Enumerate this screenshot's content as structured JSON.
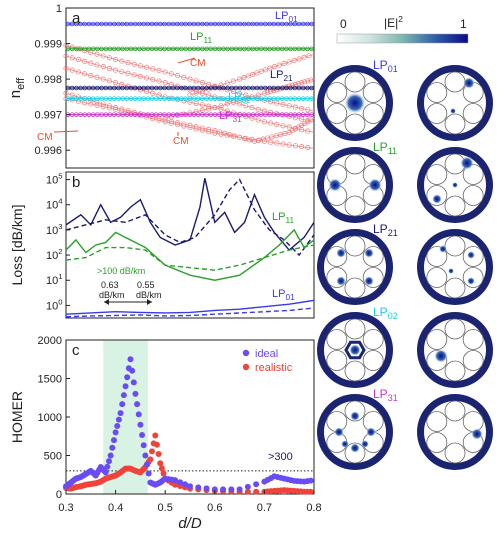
{
  "panels": {
    "a": {
      "letter": "a",
      "ylabel": "n",
      "ylabel_sub": "eff",
      "ylim": [
        0.9955,
        1.0
      ],
      "yticks": [
        "1",
        "0.999",
        "0.998",
        "0.997",
        "0.996"
      ],
      "ytick_values": [
        1.0,
        0.999,
        0.998,
        0.997,
        0.996
      ],
      "flat_modes": [
        {
          "name": "LP01",
          "label": "LP",
          "sub": "01",
          "value": 0.99955,
          "color": "#3a3ae6"
        },
        {
          "name": "LP11",
          "label": "LP",
          "sub": "11",
          "value": 0.99885,
          "color": "#2ca02c"
        },
        {
          "name": "LP21",
          "label": "LP",
          "sub": "21",
          "value": 0.99775,
          "color": "#1a1a70"
        },
        {
          "name": "LP02",
          "label": "LP",
          "sub": "02",
          "value": 0.99745,
          "color": "#17d0e8"
        },
        {
          "name": "LP31",
          "label": "LP",
          "sub": "31",
          "value": 0.997,
          "color": "#cc33cc"
        }
      ],
      "cm_label": "CM",
      "cladding_modes": [
        {
          "x": [
            0.3,
            0.4,
            0.5,
            0.6,
            0.7,
            0.8
          ],
          "y": [
            0.99895,
            0.99855,
            0.9982,
            0.9978,
            0.9974,
            0.9971
          ]
        },
        {
          "x": [
            0.3,
            0.4,
            0.5,
            0.6,
            0.7,
            0.8
          ],
          "y": [
            0.99865,
            0.99825,
            0.9979,
            0.9975,
            0.9971,
            0.9968
          ]
        },
        {
          "x": [
            0.3,
            0.4,
            0.5,
            0.6,
            0.7,
            0.8
          ],
          "y": [
            0.9983,
            0.9979,
            0.9975,
            0.9972,
            0.9968,
            0.9965
          ]
        },
        {
          "x": [
            0.3,
            0.4,
            0.5,
            0.6,
            0.7,
            0.8
          ],
          "y": [
            0.99745,
            0.99715,
            0.9968,
            0.99648,
            0.99625,
            0.99605
          ]
        },
        {
          "x": [
            0.3,
            0.4,
            0.5,
            0.6,
            0.68,
            0.75,
            0.8
          ],
          "y": [
            0.9976,
            0.9972,
            0.99685,
            0.99655,
            0.99625,
            0.9965,
            0.9969
          ]
        },
        {
          "x": [
            0.5,
            0.6,
            0.7,
            0.75,
            0.8
          ],
          "y": [
            0.9969,
            0.9972,
            0.9976,
            0.9978,
            0.998
          ]
        },
        {
          "x": [
            0.55,
            0.65,
            0.72,
            0.8
          ],
          "y": [
            0.99755,
            0.998,
            0.99835,
            0.9987
          ]
        }
      ]
    },
    "b": {
      "letter": "b",
      "ylabel": "Loss [dB/km]",
      "ylim_exp": [
        -0.5,
        5.3
      ],
      "yticks": [
        0,
        1,
        2,
        3,
        4,
        5
      ],
      "ytick_base": "10",
      "annotations": {
        "threshold": ">100 dB/km",
        "val1": "0.63",
        "val1_unit": "dB/km",
        "val2": "0.55",
        "val2_unit": "dB/km",
        "lp11_label": "LP",
        "lp11_sub": "11",
        "lp01_label": "LP",
        "lp01_sub": "01"
      },
      "series": [
        {
          "mode": "LP21",
          "style": "solid",
          "color": "#1a1a70",
          "x": [
            0.3,
            0.33,
            0.35,
            0.37,
            0.39,
            0.41,
            0.43,
            0.45,
            0.47,
            0.49,
            0.52,
            0.55,
            0.57,
            0.58,
            0.6,
            0.62,
            0.64,
            0.66,
            0.68,
            0.7,
            0.72,
            0.75,
            0.78,
            0.8
          ],
          "y": [
            3.2,
            3.6,
            3.2,
            4.0,
            3.3,
            3.5,
            3.9,
            4.2,
            3.3,
            2.7,
            2.4,
            2.6,
            3.9,
            5.05,
            3.3,
            3.7,
            2.9,
            3.3,
            4.4,
            3.5,
            2.9,
            2.2,
            2.7,
            3.3
          ]
        },
        {
          "mode": "LP21",
          "style": "dashed",
          "color": "#1a1a70",
          "x": [
            0.3,
            0.34,
            0.38,
            0.42,
            0.46,
            0.5,
            0.53,
            0.56,
            0.6,
            0.63,
            0.65,
            0.68,
            0.71,
            0.74,
            0.77,
            0.8
          ],
          "y": [
            3.0,
            3.2,
            3.4,
            3.3,
            3.6,
            2.8,
            2.5,
            2.7,
            3.6,
            4.6,
            5.0,
            3.8,
            3.0,
            2.6,
            2.0,
            2.8
          ]
        },
        {
          "mode": "LP11",
          "style": "solid",
          "color": "#2ca02c",
          "x": [
            0.3,
            0.32,
            0.34,
            0.36,
            0.38,
            0.4,
            0.42,
            0.44,
            0.46,
            0.5,
            0.55,
            0.6,
            0.65,
            0.7,
            0.73,
            0.76,
            0.78,
            0.8
          ],
          "y": [
            2.2,
            2.6,
            2.1,
            2.4,
            2.5,
            2.9,
            2.7,
            2.5,
            2.3,
            1.6,
            1.2,
            1.0,
            1.2,
            1.9,
            2.4,
            3.0,
            2.3,
            2.6
          ]
        },
        {
          "mode": "LP11",
          "style": "dashed",
          "color": "#2ca02c",
          "x": [
            0.3,
            0.34,
            0.38,
            0.42,
            0.46,
            0.5,
            0.55,
            0.6,
            0.65,
            0.7,
            0.75,
            0.8
          ],
          "y": [
            1.8,
            1.9,
            2.3,
            2.3,
            2.2,
            1.6,
            1.5,
            1.4,
            1.6,
            1.9,
            2.2,
            2.4
          ]
        },
        {
          "mode": "LP01",
          "style": "solid",
          "color": "#3a3ae6",
          "x": [
            0.3,
            0.35,
            0.4,
            0.45,
            0.5,
            0.55,
            0.6,
            0.65,
            0.7,
            0.75,
            0.8
          ],
          "y": [
            -0.35,
            -0.3,
            -0.25,
            -0.28,
            -0.3,
            -0.28,
            -0.2,
            -0.15,
            -0.05,
            0.05,
            0.2
          ]
        },
        {
          "mode": "LP01",
          "style": "dashed",
          "color": "#3a3ae6",
          "x": [
            0.3,
            0.35,
            0.4,
            0.45,
            0.5,
            0.55,
            0.6,
            0.65,
            0.7,
            0.75,
            0.8
          ],
          "y": [
            -0.45,
            -0.42,
            -0.4,
            -0.38,
            -0.42,
            -0.4,
            -0.35,
            -0.3,
            -0.25,
            -0.2,
            -0.1
          ]
        }
      ]
    },
    "c": {
      "letter": "c",
      "ylabel": "HOMER",
      "ylim": [
        0,
        2000
      ],
      "yticks": [
        0,
        500,
        1000,
        1500,
        2000
      ],
      "xlabel": "d/D",
      "xlim": [
        0.3,
        0.8
      ],
      "xticks": [
        "0.3",
        "0.4",
        "0.5",
        "0.6",
        "0.7",
        "0.8"
      ],
      "xtick_values": [
        0.3,
        0.4,
        0.5,
        0.6,
        0.7,
        0.8
      ],
      "shade_range": [
        0.375,
        0.465
      ],
      "threshold": 300,
      "threshold_label": ">300",
      "legend": [
        {
          "name": "ideal",
          "color": "#6a4cf5"
        },
        {
          "name": "realistic",
          "color": "#f0433a"
        }
      ],
      "ideal": {
        "x": [
          0.3,
          0.31,
          0.32,
          0.33,
          0.34,
          0.35,
          0.36,
          0.37,
          0.38,
          0.39,
          0.4,
          0.41,
          0.42,
          0.43,
          0.44,
          0.45,
          0.46,
          0.47,
          0.48,
          0.49,
          0.5,
          0.52,
          0.55,
          0.6,
          0.65,
          0.7,
          0.72,
          0.74,
          0.76,
          0.78,
          0.8
        ],
        "y": [
          100,
          150,
          200,
          220,
          260,
          300,
          240,
          350,
          280,
          500,
          800,
          1050,
          1400,
          1750,
          1300,
          900,
          500,
          150,
          120,
          150,
          200,
          180,
          100,
          60,
          60,
          160,
          230,
          200,
          170,
          160,
          180
        ]
      },
      "realistic": {
        "x": [
          0.3,
          0.31,
          0.32,
          0.33,
          0.34,
          0.35,
          0.36,
          0.37,
          0.38,
          0.39,
          0.4,
          0.41,
          0.42,
          0.43,
          0.44,
          0.45,
          0.46,
          0.47,
          0.48,
          0.49,
          0.5,
          0.52,
          0.55,
          0.6,
          0.65,
          0.7,
          0.72,
          0.74,
          0.76,
          0.78,
          0.8
        ],
        "y": [
          80,
          70,
          90,
          100,
          120,
          130,
          140,
          160,
          200,
          220,
          240,
          280,
          330,
          330,
          300,
          280,
          350,
          450,
          760,
          400,
          200,
          120,
          70,
          40,
          30,
          30,
          40,
          50,
          40,
          30,
          30
        ]
      }
    }
  },
  "colorbar": {
    "min_label": "0",
    "max_label": "1",
    "title": "|E|",
    "title_sup": "2",
    "stops": [
      "#ffffff",
      "#cfe3df",
      "#7fb6b0",
      "#2f5fa7",
      "#0a0a8a"
    ]
  },
  "mode_rows": [
    {
      "label": "LP",
      "sub": "01",
      "color": "#3a3ae6"
    },
    {
      "label": "LP",
      "sub": "11",
      "color": "#2ca02c"
    },
    {
      "label": "LP",
      "sub": "21",
      "color": "#1a1a70"
    },
    {
      "label": "LP",
      "sub": "02",
      "color": "#17d0e8"
    },
    {
      "label": "LP",
      "sub": "31",
      "color": "#cc33cc"
    }
  ]
}
